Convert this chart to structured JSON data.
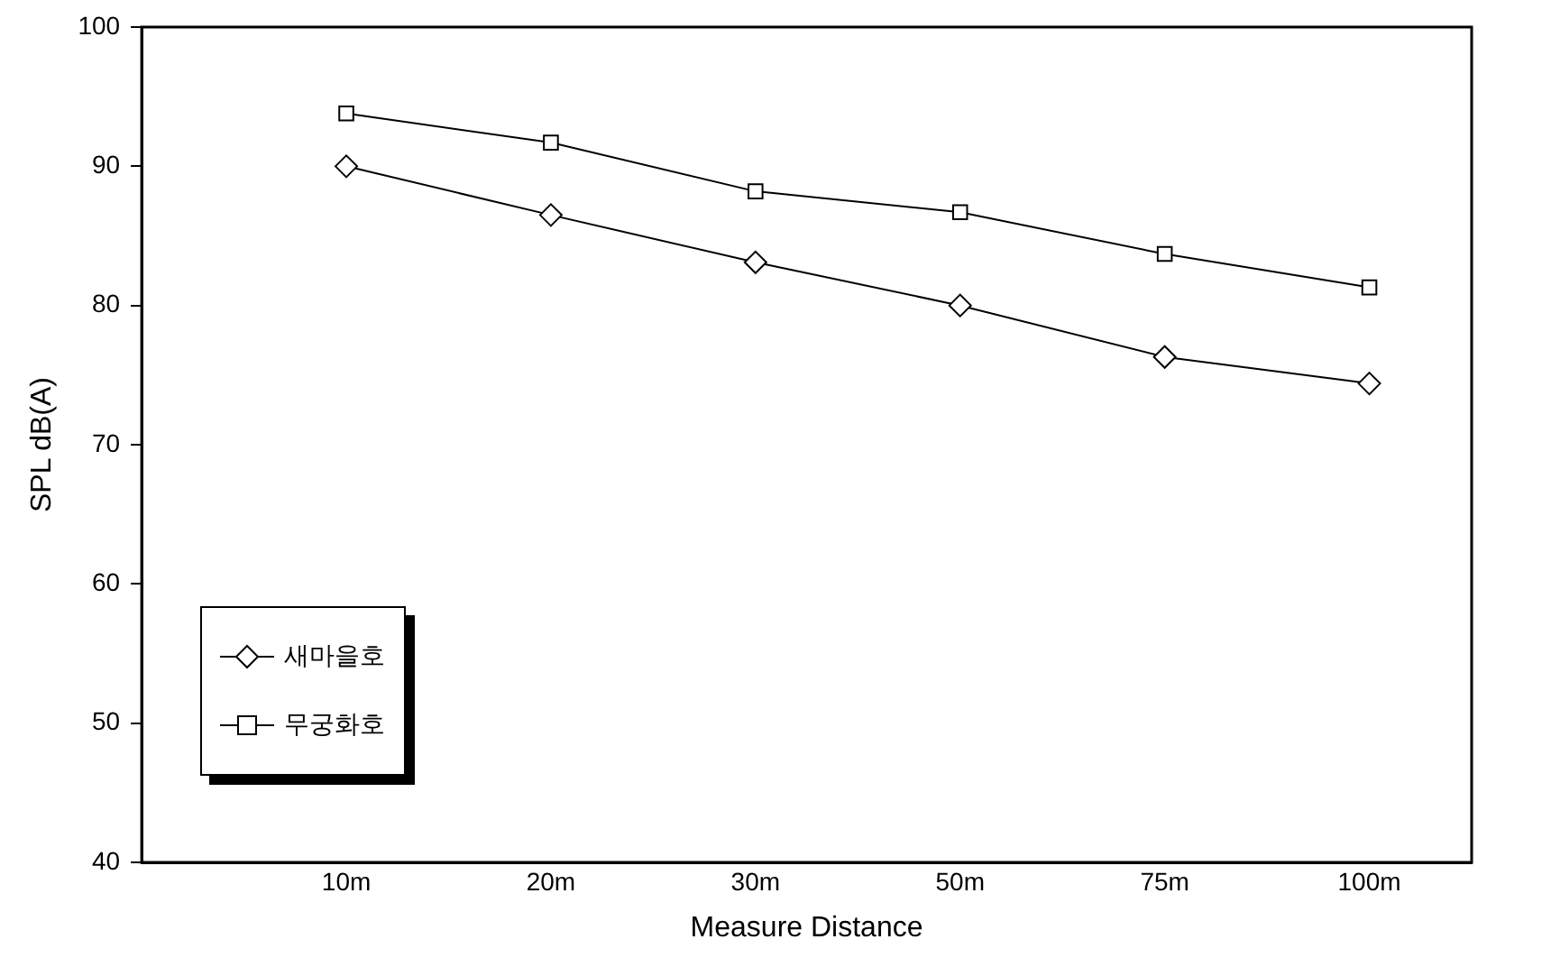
{
  "chart_data": {
    "type": "line",
    "xlabel": "Measure Distance",
    "ylabel": "SPL dB(A)",
    "categories": [
      "10m",
      "20m",
      "30m",
      "50m",
      "75m",
      "100m"
    ],
    "series": [
      {
        "name": "새마을호",
        "color": "#000000",
        "marker": "diamond",
        "values": [
          90.0,
          86.5,
          83.1,
          80.0,
          76.3,
          74.4
        ]
      },
      {
        "name": "무궁화호",
        "color": "#000000",
        "marker": "square",
        "values": [
          93.8,
          91.7,
          88.2,
          86.7,
          83.7,
          81.3
        ]
      }
    ],
    "ylim": [
      40,
      100
    ],
    "yticks": [
      40,
      50,
      60,
      70,
      80,
      90,
      100
    ],
    "grid": false,
    "legend": "bottom left",
    "line_style": "solid"
  }
}
